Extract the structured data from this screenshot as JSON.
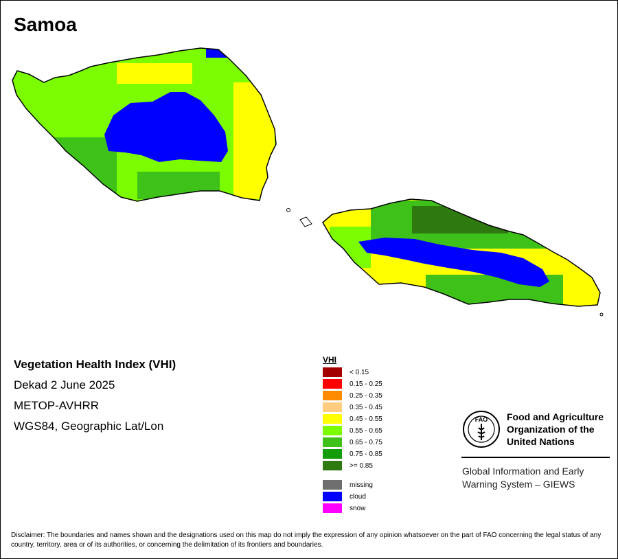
{
  "map": {
    "title": "Samoa",
    "index_name": "Vegetation Health Index (VHI)",
    "period": "Dekad 2 June 2025",
    "sensor": "METOP-AVHRR",
    "projection": "WGS84, Geographic Lat/Lon"
  },
  "legend": {
    "title": "VHI",
    "classes": [
      {
        "label": "< 0.15",
        "color": "#a30000"
      },
      {
        "label": "0.15 - 0.25",
        "color": "#ff0000"
      },
      {
        "label": "0.25 - 0.35",
        "color": "#ff8c00"
      },
      {
        "label": "0.35 - 0.45",
        "color": "#ffcc80"
      },
      {
        "label": "0.45 - 0.55",
        "color": "#ffff00"
      },
      {
        "label": "0.55 - 0.65",
        "color": "#7cfc00"
      },
      {
        "label": "0.65 - 0.75",
        "color": "#3ec21a"
      },
      {
        "label": "0.75 - 0.85",
        "color": "#129c08"
      },
      {
        "label": ">= 0.85",
        "color": "#2f7a10"
      }
    ],
    "special": [
      {
        "label": "missing",
        "color": "#6e6e6e"
      },
      {
        "label": "cloud",
        "color": "#0000ff"
      },
      {
        "label": "snow",
        "color": "#ff00ff"
      }
    ]
  },
  "organization": {
    "logo_text": "FAO",
    "name_line1": "Food and Agriculture",
    "name_line2": "Organization of the",
    "name_line3": "United Nations",
    "system_line1": "Global Information and Early",
    "system_line2": "Warning System – GIEWS"
  },
  "disclaimer": "Disclaimer: The boundaries and names shown and the designations used on this map do not imply the expression of any opinion whatsoever on the part of FAO concerning the legal status of any country, territory, area or of its authorities, or concerning the delimitation of its frontiers and boundaries."
}
